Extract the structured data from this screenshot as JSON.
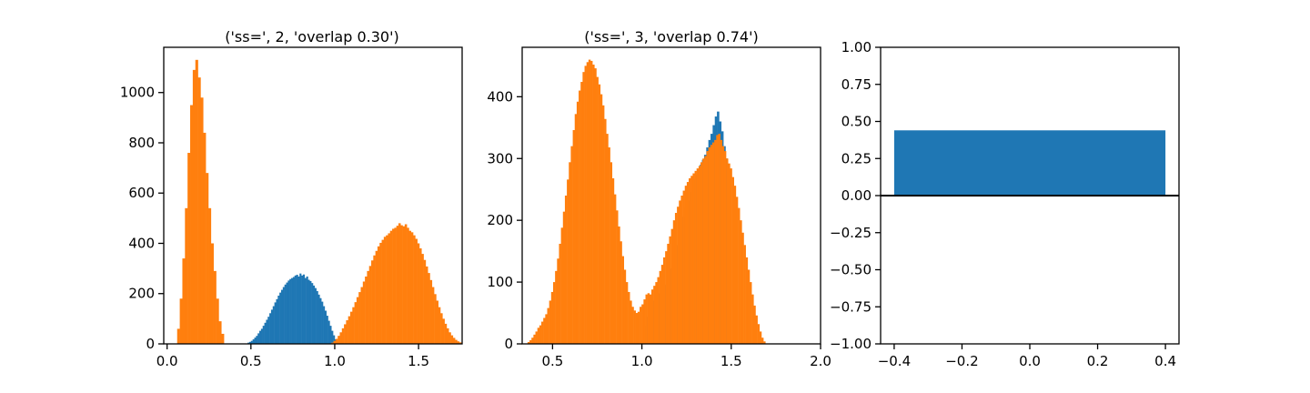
{
  "chart_data": [
    {
      "type": "histogram",
      "title": "('ss=', 2, 'overlap 0.30')",
      "xlim": [
        -0.02,
        1.76
      ],
      "ylim": [
        0,
        1180
      ],
      "xticks": [
        {
          "v": 0.0,
          "label": "0.0"
        },
        {
          "v": 0.5,
          "label": "0.5"
        },
        {
          "v": 1.0,
          "label": "1.0"
        },
        {
          "v": 1.5,
          "label": "1.5"
        }
      ],
      "yticks": [
        {
          "v": 0,
          "label": "0"
        },
        {
          "v": 200,
          "label": "200"
        },
        {
          "v": 400,
          "label": "400"
        },
        {
          "v": 600,
          "label": "600"
        },
        {
          "v": 800,
          "label": "800"
        },
        {
          "v": 1000,
          "label": "1000"
        }
      ],
      "series": [
        {
          "color": "#1f77b4",
          "x_start": 0.48,
          "bin_width": 0.01,
          "values": [
            5,
            8,
            12,
            18,
            25,
            32,
            42,
            52,
            60,
            72,
            84,
            96,
            108,
            122,
            136,
            150,
            165,
            178,
            192,
            204,
            215,
            226,
            236,
            244,
            252,
            258,
            262,
            266,
            272,
            275,
            268,
            280,
            272,
            276,
            262,
            268,
            255,
            250,
            242,
            232,
            222,
            210,
            196,
            182,
            168,
            150,
            132,
            112,
            92,
            72,
            52,
            34,
            18,
            8
          ]
        },
        {
          "color": "#ff7f0e",
          "x_start": 0.06,
          "bin_width": 0.0155,
          "values": [
            60,
            180,
            340,
            540,
            760,
            950,
            1090,
            1130,
            1060,
            980,
            840,
            680,
            540,
            400,
            290,
            180,
            90,
            40
          ]
        },
        {
          "color": "#ff7f0e",
          "x_start": 0.98,
          "bin_width": 0.0125,
          "values": [
            5,
            12,
            20,
            32,
            46,
            62,
            78,
            94,
            110,
            128,
            146,
            166,
            186,
            206,
            226,
            248,
            268,
            290,
            310,
            332,
            352,
            370,
            388,
            402,
            414,
            426,
            432,
            440,
            450,
            458,
            462,
            470,
            480,
            472,
            468,
            476,
            462,
            450,
            444,
            432,
            418,
            400,
            380,
            358,
            334,
            308,
            282,
            254,
            226,
            198,
            172,
            146,
            122,
            100,
            80,
            62,
            46,
            34,
            24,
            16,
            10,
            6
          ]
        }
      ]
    },
    {
      "type": "histogram",
      "title": "('ss=', 3, 'overlap 0.74')",
      "xlim": [
        0.33,
        2.0
      ],
      "ylim": [
        0,
        480
      ],
      "xticks": [
        {
          "v": 0.5,
          "label": "0.5"
        },
        {
          "v": 1.0,
          "label": "1.0"
        },
        {
          "v": 1.5,
          "label": "1.5"
        },
        {
          "v": 2.0,
          "label": "2.0"
        }
      ],
      "yticks": [
        {
          "v": 0,
          "label": "0"
        },
        {
          "v": 100,
          "label": "100"
        },
        {
          "v": 200,
          "label": "200"
        },
        {
          "v": 300,
          "label": "300"
        },
        {
          "v": 400,
          "label": "400"
        }
      ],
      "series": [
        {
          "color": "#1f77b4",
          "x_start": 1.0,
          "bin_width": 0.012,
          "values": [
            20,
            30,
            44,
            55,
            62,
            70,
            72,
            78,
            82,
            88,
            96,
            102,
            110,
            122,
            134,
            146,
            160,
            176,
            190,
            206,
            220,
            232,
            246,
            258,
            266,
            274,
            282,
            290,
            298,
            306,
            318,
            330,
            340,
            354,
            368,
            376,
            360,
            344,
            320,
            300,
            280
          ]
        },
        {
          "color": "#ff7f0e",
          "x_start": 0.36,
          "bin_width": 0.011,
          "values": [
            3,
            6,
            10,
            15,
            20,
            26,
            30,
            36,
            42,
            48,
            58,
            70,
            84,
            100,
            118,
            138,
            162,
            188,
            214,
            240,
            266,
            294,
            320,
            346,
            372,
            392,
            410,
            424,
            440,
            450,
            456,
            460,
            458,
            452,
            446,
            432,
            420,
            404,
            386,
            364,
            340,
            318,
            294,
            268,
            242,
            216,
            190,
            166,
            142,
            120,
            100,
            84,
            70,
            60,
            54,
            50,
            52,
            60,
            64,
            72,
            80,
            82,
            80,
            88,
            94,
            100,
            108,
            118,
            128,
            140,
            150,
            162,
            174,
            186,
            200,
            212,
            222,
            232,
            240,
            248,
            256,
            262,
            268,
            272,
            276,
            280,
            284,
            288,
            294,
            300,
            304,
            312,
            318,
            322,
            326,
            330,
            338,
            340,
            330,
            320,
            312,
            300,
            292,
            284,
            270,
            256,
            238,
            220,
            200,
            180,
            160,
            140,
            120,
            100,
            80,
            62,
            46,
            32,
            20,
            10,
            4
          ]
        }
      ]
    },
    {
      "type": "bar",
      "xlim": [
        -0.44,
        0.44
      ],
      "ylim": [
        -1.0,
        1.0
      ],
      "xticks": [
        {
          "v": -0.4,
          "label": "−0.4"
        },
        {
          "v": -0.2,
          "label": "−0.2"
        },
        {
          "v": 0.0,
          "label": "0.0"
        },
        {
          "v": 0.2,
          "label": "0.2"
        },
        {
          "v": 0.4,
          "label": "0.4"
        }
      ],
      "yticks": [
        {
          "v": -1.0,
          "label": "−1.00"
        },
        {
          "v": -0.75,
          "label": "−0.75"
        },
        {
          "v": -0.5,
          "label": "−0.50"
        },
        {
          "v": -0.25,
          "label": "−0.25"
        },
        {
          "v": 0.0,
          "label": "0.00"
        },
        {
          "v": 0.25,
          "label": "0.25"
        },
        {
          "v": 0.5,
          "label": "0.50"
        },
        {
          "v": 0.75,
          "label": "0.75"
        },
        {
          "v": 1.0,
          "label": "1.00"
        }
      ],
      "bars": [
        {
          "x": 0.0,
          "width": 0.8,
          "value": 0.44,
          "color": "#1f77b4"
        }
      ],
      "hline": 0.0
    }
  ]
}
